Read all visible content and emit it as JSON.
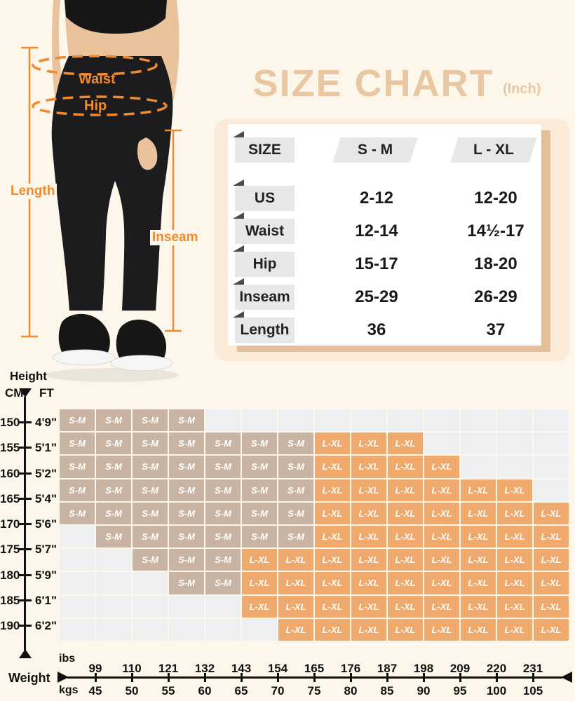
{
  "title": {
    "text": "SIZE CHART",
    "unit": "(Inch)"
  },
  "figure_annotations": {
    "waist": "Waist",
    "hip": "Hip",
    "length": "Length",
    "inseam": "Inseam"
  },
  "size_table": {
    "columns": {
      "size": "SIZE",
      "sm": "S - M",
      "lxl": "L - XL"
    },
    "rows": [
      {
        "label": "US",
        "sm": "2-12",
        "lxl": "12-20"
      },
      {
        "label": "Waist",
        "sm": "12-14",
        "lxl": "14½-17"
      },
      {
        "label": "Hip",
        "sm": "15-17",
        "lxl": "18-20"
      },
      {
        "label": "Inseam",
        "sm": "25-29",
        "lxl": "26-29"
      },
      {
        "label": "Length",
        "sm": "36",
        "lxl": "37"
      }
    ]
  },
  "chart_data": {
    "type": "heatmap",
    "title": "Height / Weight size-fit matrix",
    "height_axis": {
      "label": "Height",
      "unit_left": "CM",
      "unit_right": "FT",
      "cm": [
        150,
        155,
        160,
        165,
        170,
        175,
        180,
        185,
        190
      ],
      "ft": [
        "4'9\"",
        "5'1\"",
        "5'2\"",
        "5'4\"",
        "5'6\"",
        "5'7\"",
        "5'9\"",
        "6'1\"",
        "6'2\""
      ]
    },
    "weight_axis": {
      "label": "Weight",
      "unit_top": "ibs",
      "unit_bottom": "kgs",
      "lbs": [
        99,
        110,
        121,
        132,
        143,
        154,
        165,
        176,
        187,
        198,
        209,
        220,
        231
      ],
      "kgs": [
        45,
        50,
        55,
        60,
        65,
        70,
        75,
        80,
        85,
        90,
        95,
        100,
        105
      ]
    },
    "cell_values": {
      "sm": "S-M",
      "lxl": "L-XL",
      "empty": ""
    },
    "grid": [
      [
        "S-M",
        "S-M",
        "S-M",
        "S-M",
        "",
        "",
        "",
        "",
        "",
        "",
        "",
        "",
        "",
        ""
      ],
      [
        "S-M",
        "S-M",
        "S-M",
        "S-M",
        "S-M",
        "S-M",
        "S-M",
        "L-XL",
        "L-XL",
        "L-XL",
        "",
        "",
        "",
        ""
      ],
      [
        "S-M",
        "S-M",
        "S-M",
        "S-M",
        "S-M",
        "S-M",
        "S-M",
        "L-XL",
        "L-XL",
        "L-XL",
        "L-XL",
        "",
        "",
        ""
      ],
      [
        "S-M",
        "S-M",
        "S-M",
        "S-M",
        "S-M",
        "S-M",
        "S-M",
        "L-XL",
        "L-XL",
        "L-XL",
        "L-XL",
        "L-XL",
        "L-XL",
        ""
      ],
      [
        "S-M",
        "S-M",
        "S-M",
        "S-M",
        "S-M",
        "S-M",
        "S-M",
        "L-XL",
        "L-XL",
        "L-XL",
        "L-XL",
        "L-XL",
        "L-XL",
        "L-XL"
      ],
      [
        "",
        "S-M",
        "S-M",
        "S-M",
        "S-M",
        "S-M",
        "S-M",
        "L-XL",
        "L-XL",
        "L-XL",
        "L-XL",
        "L-XL",
        "L-XL",
        "L-XL"
      ],
      [
        "",
        "",
        "S-M",
        "S-M",
        "S-M",
        "L-XL",
        "L-XL",
        "L-XL",
        "L-XL",
        "L-XL",
        "L-XL",
        "L-XL",
        "L-XL",
        "L-XL"
      ],
      [
        "",
        "",
        "",
        "S-M",
        "S-M",
        "L-XL",
        "L-XL",
        "L-XL",
        "L-XL",
        "L-XL",
        "L-XL",
        "L-XL",
        "L-XL",
        "L-XL"
      ],
      [
        "",
        "",
        "",
        "",
        "",
        "L-XL",
        "L-XL",
        "L-XL",
        "L-XL",
        "L-XL",
        "L-XL",
        "L-XL",
        "L-XL",
        "L-XL"
      ],
      [
        "",
        "",
        "",
        "",
        "",
        "",
        "L-XL",
        "L-XL",
        "L-XL",
        "L-XL",
        "L-XL",
        "L-XL",
        "L-XL",
        "L-XL"
      ]
    ]
  },
  "colors": {
    "background": "#fcf7ea",
    "title_tan": "#e8c7a2",
    "panel_peach": "#fcead9",
    "panel_shadow": "#e3c09a",
    "sm_cell": "#c9b4a3",
    "lxl_cell": "#efa96d",
    "empty_cell": "#edeff1",
    "annotation_orange": "#f18a2e"
  }
}
